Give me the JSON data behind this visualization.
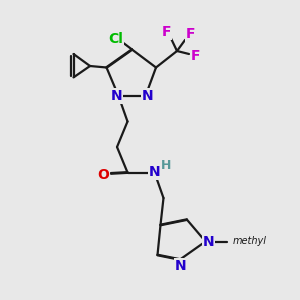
{
  "background_color": "#e8e8e8",
  "bond_color": "#1a1a1a",
  "bond_lw": 1.6,
  "colors": {
    "Cl": "#00bb00",
    "F": "#cc00cc",
    "N": "#2200cc",
    "O": "#dd0000",
    "H": "#559999",
    "C": "#1a1a1a"
  },
  "figsize": [
    3.0,
    3.0
  ],
  "dpi": 100
}
